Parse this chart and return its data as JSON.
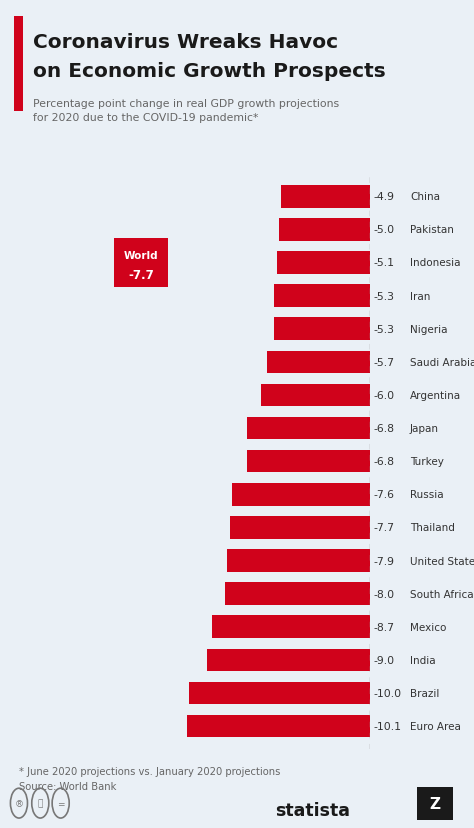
{
  "title_line1": "Coronavirus Wreaks Havoc",
  "title_line2": "on Economic Growth Prospects",
  "subtitle": "Percentage point change in real GDP growth projections\nfor 2020 due to the COVID-19 pandemic*",
  "footnote": "* June 2020 projections vs. January 2020 projections\nSource: World Bank",
  "countries": [
    "China",
    "Pakistan",
    "Indonesia",
    "Iran",
    "Nigeria",
    "Saudi Arabia",
    "Argentina",
    "Japan",
    "Turkey",
    "Russia",
    "Thailand",
    "United States",
    "South Africa",
    "Mexico",
    "India",
    "Brazil",
    "Euro Area"
  ],
  "values": [
    -4.9,
    -5.0,
    -5.1,
    -5.3,
    -5.3,
    -5.7,
    -6.0,
    -6.8,
    -6.8,
    -7.6,
    -7.7,
    -7.9,
    -8.0,
    -8.7,
    -9.0,
    -10.0,
    -10.1
  ],
  "bar_color": "#d0021b",
  "bg_color": "#eaf0f6",
  "title_color": "#1a1a1a",
  "subtitle_color": "#666666",
  "value_color": "#333333",
  "country_color": "#333333",
  "world_label_line1": "World",
  "world_label_line2": "-7.7",
  "world_box_color": "#d0021b",
  "world_text_color": "#ffffff",
  "dashed_line_color": "#999999",
  "title_accent_color": "#d0021b",
  "footnote_color": "#666666",
  "statista_color": "#1a1a1a"
}
